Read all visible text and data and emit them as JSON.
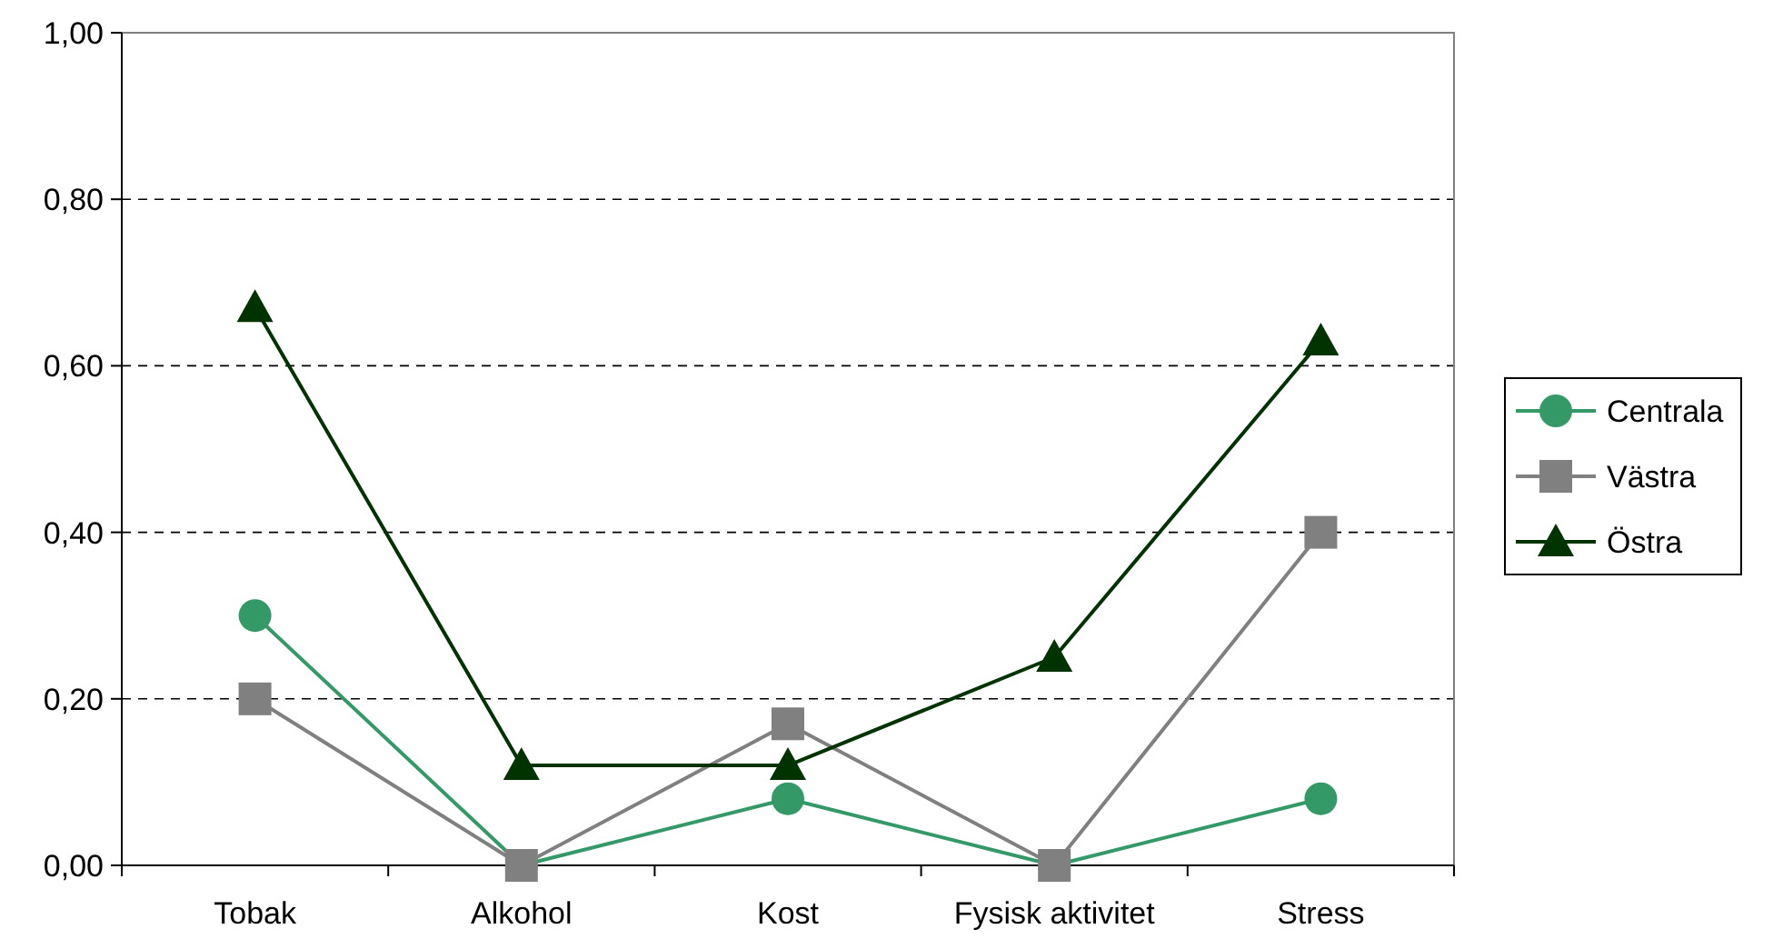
{
  "chart_data": {
    "type": "line",
    "categories": [
      "Tobak",
      "Alkohol",
      "Kost",
      "Fysisk aktivitet",
      "Stress"
    ],
    "series": [
      {
        "name": "Centrala",
        "color": "#339966",
        "marker": "circle",
        "values": [
          0.3,
          0,
          0.08,
          0,
          0.08
        ]
      },
      {
        "name": "Västra",
        "color": "#808080",
        "marker": "square",
        "values": [
          0.2,
          0,
          0.17,
          0,
          0.4
        ]
      },
      {
        "name": "Östra",
        "color": "#003300",
        "marker": "triangle",
        "values": [
          0.67,
          0.12,
          0.12,
          0.25,
          0.63
        ]
      }
    ],
    "ylim": [
      0,
      1
    ],
    "yticks": [
      {
        "value": 0,
        "label": "0,00"
      },
      {
        "value": 0.2,
        "label": "0,20"
      },
      {
        "value": 0.4,
        "label": "0,40"
      },
      {
        "value": 0.6,
        "label": "0,60"
      },
      {
        "value": 0.8,
        "label": "0,80"
      },
      {
        "value": 1,
        "label": "1,00"
      }
    ],
    "grid": "y",
    "legend": "right"
  }
}
